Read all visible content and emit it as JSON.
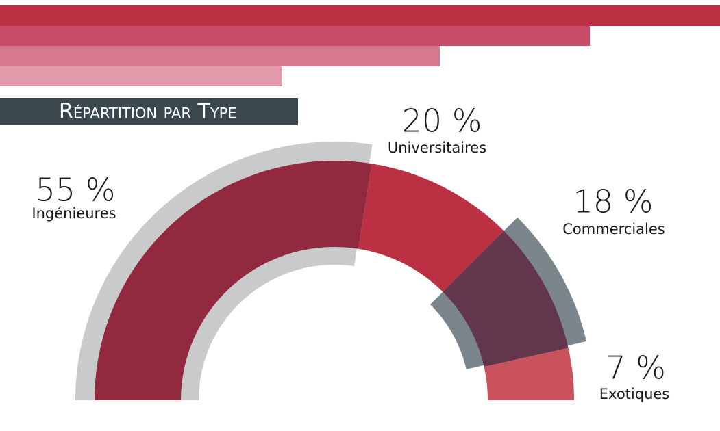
{
  "chart_data": {
    "type": "semi-donut",
    "title": "Répartition par Type",
    "categories": [
      "Ingénieures",
      "Universitaires",
      "Commerciales",
      "Exotiques"
    ],
    "values": [
      55,
      20,
      18,
      7
    ],
    "value_labels": [
      "55 %",
      "20 %",
      "18 %",
      "7 %"
    ],
    "colors": [
      "#93293f",
      "#bb3042",
      "#62374b",
      "#c9525d"
    ],
    "shadow_colors": [
      "#c8cacb",
      null,
      "#7b868c",
      null
    ]
  }
}
